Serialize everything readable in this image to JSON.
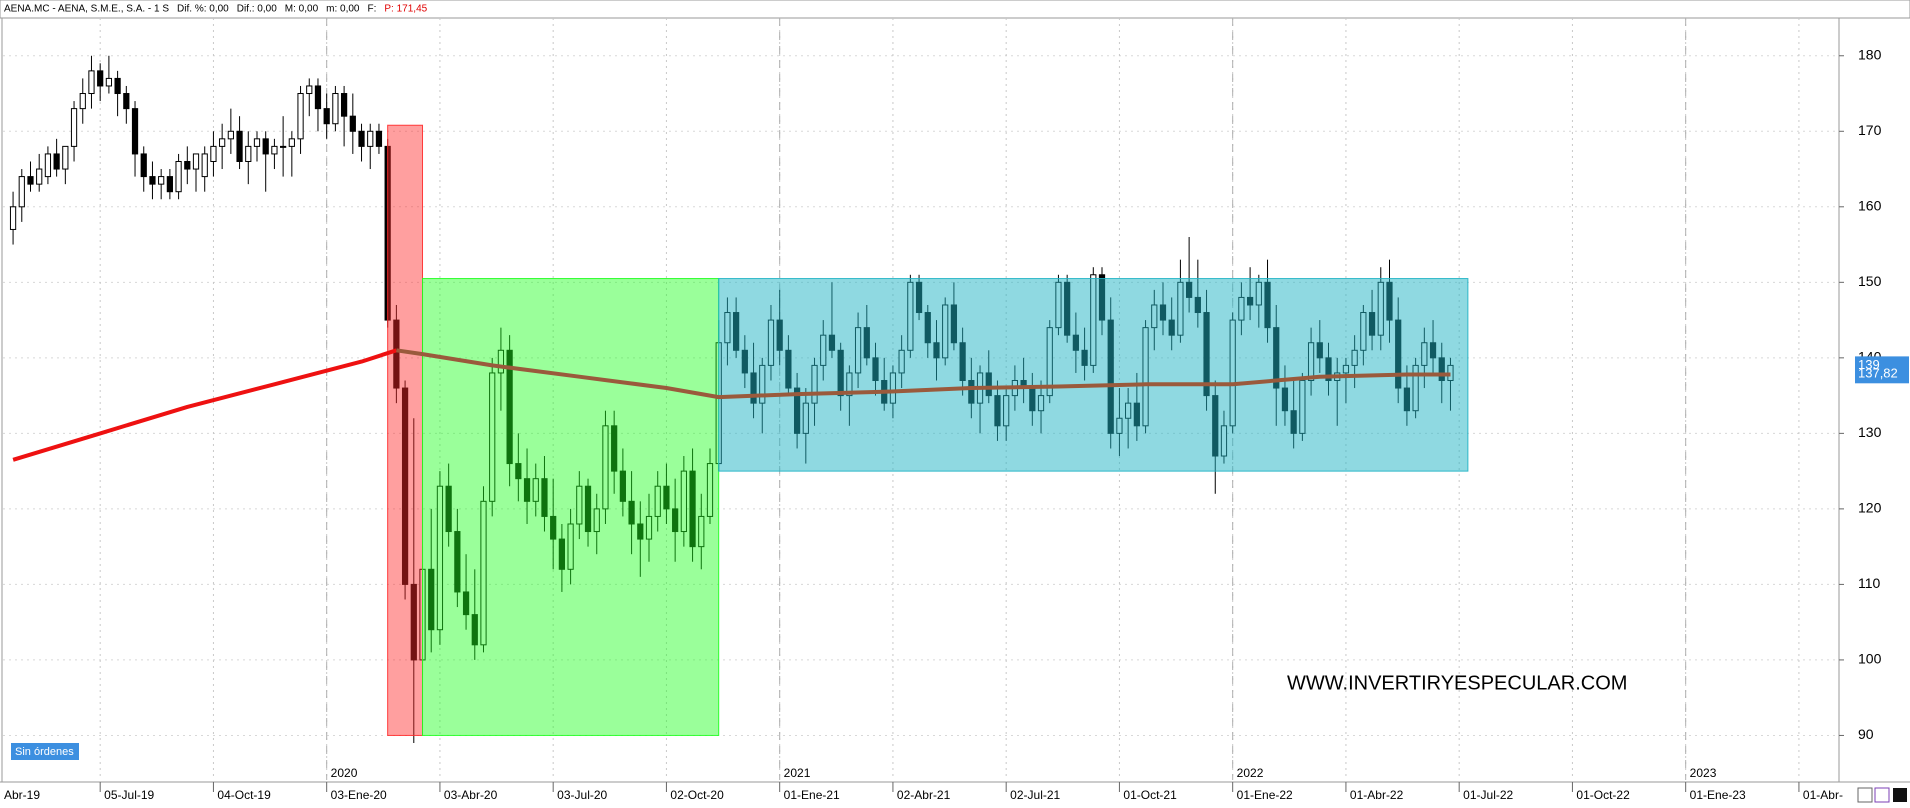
{
  "chart_data": {
    "type": "candlestick",
    "header_items": [
      "AENA.MC - AENA, S.M.E., S.A.  -  1 S",
      "Dif. %: 0,00",
      "Dif.: 0,00",
      "M: 0,00",
      "m: 0,00",
      "F:"
    ],
    "header_price": "P: 171,45",
    "status": "Sin órdenes",
    "watermark": "WWW.INVERTIRYESPECULAR.COM",
    "xlim": [
      -1.5,
      209.6
    ],
    "ylim": [
      84.1,
      185
    ],
    "yticks": [
      90,
      100,
      110,
      120,
      130,
      140,
      150,
      160,
      170,
      180
    ],
    "xticks": [
      {
        "value": -3,
        "label": "Abr-19"
      },
      {
        "value": 10,
        "label": "05-Jul-19"
      },
      {
        "value": 23,
        "label": "04-Oct-19"
      },
      {
        "value": 36,
        "label": "03-Ene-20"
      },
      {
        "value": 49,
        "label": "03-Abr-20"
      },
      {
        "value": 62,
        "label": "03-Jul-20"
      },
      {
        "value": 75,
        "label": "02-Oct-20"
      },
      {
        "value": 88,
        "label": "01-Ene-21"
      },
      {
        "value": 101,
        "label": "02-Abr-21"
      },
      {
        "value": 114,
        "label": "02-Jul-21"
      },
      {
        "value": 127,
        "label": "01-Oct-21"
      },
      {
        "value": 140,
        "label": "01-Ene-22"
      },
      {
        "value": 153,
        "label": "01-Abr-22"
      },
      {
        "value": 166,
        "label": "01-Jul-22"
      },
      {
        "value": 179,
        "label": "01-Oct-22"
      },
      {
        "value": 192,
        "label": "01-Ene-23"
      },
      {
        "value": 205,
        "label": "01-Abr-"
      }
    ],
    "year_ticks": [
      {
        "value": 36,
        "label": "2020"
      },
      {
        "value": 88,
        "label": "2021"
      },
      {
        "value": 140,
        "label": "2022"
      },
      {
        "value": 192,
        "label": "2023"
      }
    ],
    "price_labels": [
      {
        "value": 139,
        "label": "139"
      },
      {
        "value": 137.82,
        "label": "137,82"
      }
    ],
    "up_color": "#ffffff",
    "down_color": "#000000",
    "zones": [
      {
        "x": [
          43,
          47
        ],
        "y": [
          90,
          170.8
        ],
        "color": "#ff2a2a",
        "opacity": 0.45
      },
      {
        "x": [
          47,
          81
        ],
        "y": [
          90,
          150.5
        ],
        "color": "#1eff1e",
        "opacity": 0.45
      },
      {
        "x": [
          81,
          167
        ],
        "y": [
          125,
          150.5
        ],
        "color": "#1fb3c4",
        "opacity": 0.5
      }
    ],
    "lines": [
      {
        "color": "#ee1111",
        "x": [
          0,
          10,
          20,
          30,
          40,
          44
        ],
        "values": [
          126.5,
          130,
          133.5,
          136.5,
          139.5,
          141
        ]
      },
      {
        "color": "#9a5a3c",
        "x": [
          44,
          47,
          55,
          65,
          75,
          81,
          90,
          100,
          110,
          120,
          130,
          140,
          150,
          160,
          165
        ],
        "values": [
          141,
          140.5,
          139,
          137.5,
          136,
          134.8,
          135.2,
          135.5,
          136,
          136.2,
          136.5,
          136.5,
          137.5,
          137.8,
          137.8
        ]
      }
    ],
    "ohlc": [
      [
        157,
        162,
        155,
        160
      ],
      [
        160,
        165,
        158,
        164
      ],
      [
        164,
        166,
        162,
        163
      ],
      [
        163,
        167,
        162,
        165
      ],
      [
        164,
        168,
        163,
        167
      ],
      [
        167,
        169,
        164,
        165
      ],
      [
        165,
        168,
        163,
        168
      ],
      [
        168,
        174,
        166,
        173
      ],
      [
        173,
        177,
        171,
        175
      ],
      [
        175,
        180,
        173,
        178
      ],
      [
        178,
        179,
        174,
        176
      ],
      [
        176,
        180,
        175,
        177
      ],
      [
        177,
        178,
        172,
        175
      ],
      [
        175,
        176,
        171,
        173
      ],
      [
        173,
        174,
        164,
        167
      ],
      [
        167,
        168,
        162,
        164
      ],
      [
        164,
        166,
        161,
        163
      ],
      [
        163,
        165,
        161,
        164
      ],
      [
        164,
        165,
        161,
        162
      ],
      [
        162,
        167,
        161,
        166
      ],
      [
        166,
        168,
        163,
        165
      ],
      [
        165,
        167,
        162,
        167
      ],
      [
        164,
        168,
        162,
        167
      ],
      [
        166,
        170,
        164,
        168
      ],
      [
        168,
        171,
        165,
        169
      ],
      [
        169,
        173,
        167,
        170
      ],
      [
        170,
        172,
        165,
        166
      ],
      [
        166,
        170,
        163,
        168
      ],
      [
        168,
        170,
        166,
        169
      ],
      [
        169,
        170,
        162,
        167
      ],
      [
        167,
        169,
        165,
        168
      ],
      [
        168,
        172,
        164,
        168
      ],
      [
        168,
        170,
        164,
        169
      ],
      [
        169,
        176,
        167,
        175
      ],
      [
        175,
        177,
        172,
        176
      ],
      [
        176,
        177,
        170,
        173
      ],
      [
        173,
        175,
        169,
        171
      ],
      [
        171,
        176,
        170,
        175
      ],
      [
        175,
        176,
        168,
        172
      ],
      [
        172,
        175,
        167,
        170
      ],
      [
        170,
        171,
        166,
        168
      ],
      [
        168,
        171,
        165,
        170
      ],
      [
        170,
        171,
        167,
        168
      ],
      [
        168,
        169,
        144,
        145
      ],
      [
        145,
        147,
        134,
        136
      ],
      [
        136,
        137,
        108,
        110
      ],
      [
        110,
        132,
        89,
        100
      ],
      [
        100,
        115,
        98,
        112
      ],
      [
        112,
        120,
        101,
        104
      ],
      [
        104,
        125,
        102,
        123
      ],
      [
        123,
        126,
        115,
        117
      ],
      [
        117,
        120,
        107,
        109
      ],
      [
        109,
        114,
        104,
        106
      ],
      [
        106,
        112,
        100,
        102
      ],
      [
        102,
        123,
        101,
        121
      ],
      [
        121,
        140,
        119,
        138
      ],
      [
        138,
        144,
        133,
        141
      ],
      [
        141,
        143,
        123,
        126
      ],
      [
        126,
        130,
        121,
        124
      ],
      [
        124,
        128,
        118,
        121
      ],
      [
        121,
        126,
        119,
        124
      ],
      [
        124,
        127,
        117,
        119
      ],
      [
        119,
        124,
        112,
        116
      ],
      [
        116,
        118,
        109,
        112
      ],
      [
        112,
        120,
        110,
        118
      ],
      [
        118,
        125,
        116,
        123
      ],
      [
        123,
        124,
        115,
        117
      ],
      [
        117,
        122,
        114,
        120
      ],
      [
        120,
        133,
        118,
        131
      ],
      [
        131,
        133,
        122,
        125
      ],
      [
        125,
        128,
        119,
        121
      ],
      [
        121,
        125,
        114,
        118
      ],
      [
        118,
        121,
        111,
        116
      ],
      [
        116,
        122,
        113,
        119
      ],
      [
        119,
        125,
        117,
        123
      ],
      [
        123,
        126,
        118,
        120
      ],
      [
        120,
        124,
        113,
        117
      ],
      [
        117,
        127,
        115,
        125
      ],
      [
        125,
        128,
        113,
        115
      ],
      [
        115,
        122,
        112,
        119
      ],
      [
        119,
        128,
        118,
        126
      ],
      [
        126,
        145,
        125,
        142
      ],
      [
        142,
        148,
        139,
        146
      ],
      [
        146,
        148,
        140,
        141
      ],
      [
        141,
        143,
        136,
        138
      ],
      [
        138,
        142,
        132,
        134
      ],
      [
        134,
        140,
        130,
        139
      ],
      [
        139,
        147,
        137,
        145
      ],
      [
        145,
        149,
        139,
        141
      ],
      [
        141,
        143,
        135,
        136
      ],
      [
        136,
        138,
        128,
        130
      ],
      [
        130,
        136,
        126,
        134
      ],
      [
        134,
        140,
        131,
        139
      ],
      [
        139,
        145,
        137,
        143
      ],
      [
        143,
        150,
        140,
        141
      ],
      [
        141,
        142,
        133,
        135
      ],
      [
        135,
        139,
        131,
        138
      ],
      [
        138,
        146,
        136,
        144
      ],
      [
        144,
        147,
        139,
        140
      ],
      [
        140,
        142,
        135,
        137
      ],
      [
        137,
        140,
        133,
        134
      ],
      [
        134,
        139,
        132,
        138
      ],
      [
        138,
        143,
        136,
        141
      ],
      [
        141,
        151,
        140,
        150
      ],
      [
        150,
        151,
        145,
        146
      ],
      [
        146,
        147,
        140,
        142
      ],
      [
        142,
        145,
        137,
        140
      ],
      [
        140,
        148,
        139,
        147
      ],
      [
        147,
        150,
        141,
        142
      ],
      [
        142,
        144,
        135,
        137
      ],
      [
        137,
        140,
        132,
        134
      ],
      [
        134,
        139,
        130,
        138
      ],
      [
        138,
        141,
        134,
        135
      ],
      [
        135,
        137,
        129,
        131
      ],
      [
        131,
        136,
        129,
        135
      ],
      [
        135,
        139,
        133,
        137
      ],
      [
        137,
        140,
        134,
        136
      ],
      [
        136,
        138,
        131,
        133
      ],
      [
        133,
        137,
        130,
        135
      ],
      [
        135,
        145,
        134,
        144
      ],
      [
        144,
        151,
        143,
        150
      ],
      [
        150,
        151,
        142,
        143
      ],
      [
        143,
        146,
        138,
        141
      ],
      [
        141,
        144,
        137,
        139
      ],
      [
        139,
        152,
        138,
        151
      ],
      [
        151,
        152,
        143,
        145
      ],
      [
        145,
        148,
        128,
        130
      ],
      [
        130,
        136,
        127,
        132
      ],
      [
        132,
        136,
        128,
        134
      ],
      [
        134,
        138,
        129,
        131
      ],
      [
        131,
        145,
        130,
        144
      ],
      [
        144,
        149,
        141,
        147
      ],
      [
        147,
        150,
        143,
        145
      ],
      [
        145,
        148,
        141,
        143
      ],
      [
        143,
        153,
        142,
        150
      ],
      [
        150,
        156,
        146,
        148
      ],
      [
        148,
        153,
        144,
        146
      ],
      [
        146,
        149,
        133,
        135
      ],
      [
        135,
        137,
        122,
        127
      ],
      [
        127,
        133,
        126,
        131
      ],
      [
        131,
        146,
        130,
        145
      ],
      [
        145,
        150,
        143,
        148
      ],
      [
        148,
        152,
        145,
        147
      ],
      [
        147,
        151,
        144,
        150
      ],
      [
        150,
        153,
        142,
        144
      ],
      [
        144,
        147,
        131,
        136
      ],
      [
        136,
        139,
        131,
        133
      ],
      [
        133,
        137,
        128,
        130
      ],
      [
        130,
        138,
        129,
        137
      ],
      [
        137,
        144,
        135,
        142
      ],
      [
        142,
        145,
        138,
        140
      ],
      [
        140,
        142,
        135,
        137
      ],
      [
        137,
        140,
        131,
        138
      ],
      [
        138,
        140,
        134,
        139
      ],
      [
        139,
        143,
        136,
        141
      ],
      [
        141,
        147,
        139,
        146
      ],
      [
        146,
        149,
        141,
        143
      ],
      [
        143,
        152,
        141,
        150
      ],
      [
        150,
        153,
        142,
        145
      ],
      [
        145,
        148,
        134,
        136
      ],
      [
        136,
        139,
        131,
        133
      ],
      [
        133,
        140,
        132,
        139
      ],
      [
        139,
        144,
        136,
        142
      ],
      [
        142,
        145,
        138,
        140
      ],
      [
        140,
        142,
        134,
        137
      ],
      [
        137,
        140,
        133,
        139
      ]
    ]
  }
}
